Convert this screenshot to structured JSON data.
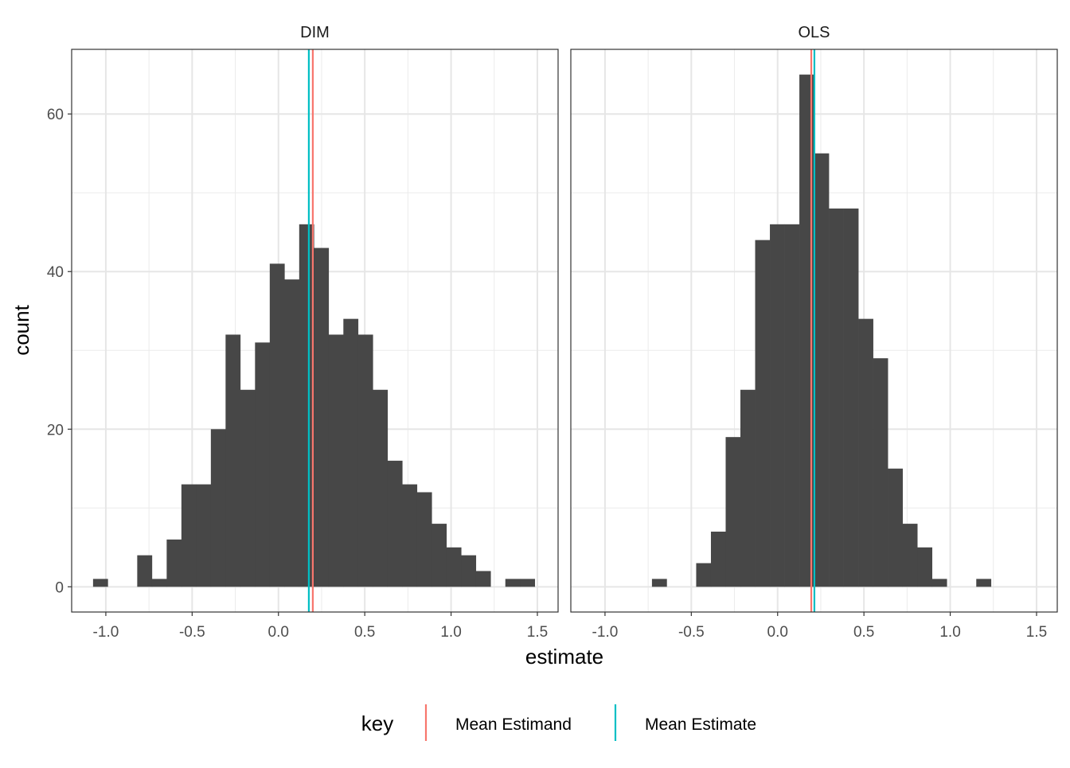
{
  "chart_data": {
    "type": "bar",
    "subtype": "histogram-facets",
    "xlabel": "estimate",
    "ylabel": "count",
    "xlim": [
      -1.198,
      1.62
    ],
    "ylim": [
      -3.2,
      68.2
    ],
    "x_ticks": [
      -1.0,
      -0.5,
      0.0,
      0.5,
      1.0,
      1.5
    ],
    "x_tick_labels": [
      "-1.0",
      "-0.5",
      "0.0",
      "0.5",
      "1.0",
      "1.5"
    ],
    "y_ticks": [
      0,
      20,
      40,
      60
    ],
    "y_tick_labels": [
      "0",
      "20",
      "40",
      "60"
    ],
    "grid": true,
    "facets": [
      {
        "title": "DIM",
        "bin_start": -1.074,
        "bin_width": 0.0853,
        "counts": [
          1,
          0,
          0,
          4,
          1,
          6,
          13,
          13,
          20,
          32,
          25,
          31,
          41,
          39,
          46,
          43,
          32,
          34,
          32,
          25,
          16,
          13,
          12,
          8,
          5,
          4,
          2,
          0,
          1,
          1
        ],
        "mean_estimand": 0.199,
        "mean_estimate": 0.176
      },
      {
        "title": "OLS",
        "bin_start": -0.728,
        "bin_width": 0.0854,
        "counts": [
          1,
          0,
          0,
          3,
          7,
          19,
          25,
          44,
          46,
          46,
          65,
          55,
          48,
          48,
          34,
          29,
          15,
          8,
          5,
          1,
          0,
          0,
          1
        ],
        "mean_estimand": 0.195,
        "mean_estimate": 0.213
      }
    ],
    "legend": {
      "title": "key",
      "placement": "bottom",
      "entries": [
        {
          "label": "Mean Estimand",
          "color": "#F8766D"
        },
        {
          "label": "Mean Estimate",
          "color": "#00BFC4"
        }
      ]
    },
    "bar_color": "#474747"
  }
}
